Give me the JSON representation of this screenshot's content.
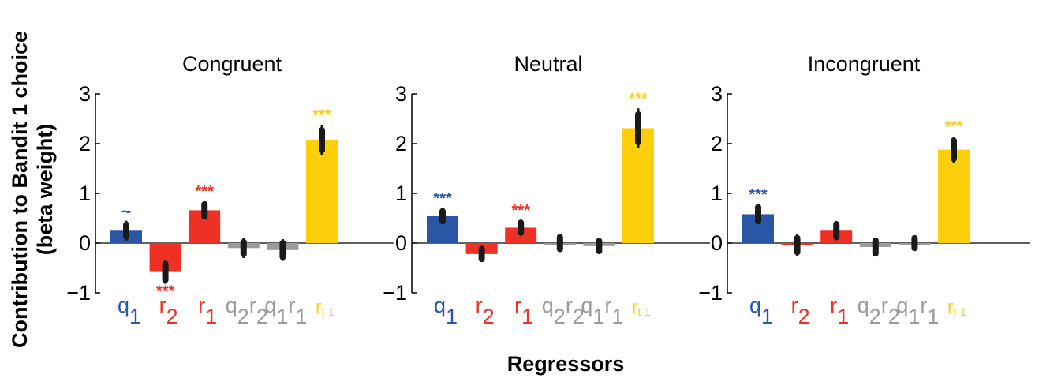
{
  "figure": {
    "ylabel_line1": "Contribution to Bandit 1 choice",
    "ylabel_line2": "(beta weight)",
    "xlabel": "Regressors"
  },
  "colors": {
    "blue": "#2b55a6",
    "red": "#ee3124",
    "gray": "#9b9b9b",
    "yellow": "#fccf0a",
    "errorbar": "#1a1a1a"
  },
  "chart_data": [
    {
      "type": "bar",
      "title": "Congruent",
      "ylim": [
        -1,
        3
      ],
      "yticks": [
        "−1",
        "0",
        "1",
        "2",
        "3"
      ],
      "categories": [
        "q1",
        "r2",
        "r1",
        "q2r2",
        "q1r1",
        "rt-1"
      ],
      "category_colors": [
        "blue",
        "red",
        "red",
        "gray",
        "gray",
        "yellow"
      ],
      "values": [
        0.25,
        -0.58,
        0.66,
        -0.1,
        -0.14,
        2.07
      ],
      "error_thick": [
        0.12,
        0.16,
        0.12,
        0.12,
        0.14,
        0.2
      ],
      "error_thin": [
        0.2,
        0.24,
        0.18,
        0.2,
        0.22,
        0.3
      ],
      "significance": [
        "~",
        "***",
        "***",
        "",
        "",
        "***"
      ]
    },
    {
      "type": "bar",
      "title": "Neutral",
      "ylim": [
        -1,
        3
      ],
      "yticks": [
        "−1",
        "0",
        "1",
        "2",
        "3"
      ],
      "categories": [
        "q1",
        "r2",
        "r1",
        "q2r2",
        "q1r1",
        "rt-1"
      ],
      "category_colors": [
        "blue",
        "red",
        "red",
        "gray",
        "gray",
        "yellow"
      ],
      "values": [
        0.54,
        -0.22,
        0.31,
        0.0,
        -0.06,
        2.31
      ],
      "error_thick": [
        0.1,
        0.1,
        0.1,
        0.12,
        0.1,
        0.28
      ],
      "error_thin": [
        0.16,
        0.16,
        0.15,
        0.17,
        0.15,
        0.4
      ],
      "significance": [
        "***",
        "",
        "***",
        "",
        "",
        "***"
      ]
    },
    {
      "type": "bar",
      "title": "Incongruent",
      "ylim": [
        -1,
        3
      ],
      "yticks": [
        "−1",
        "0",
        "1",
        "2",
        "3"
      ],
      "categories": [
        "q1",
        "r2",
        "r1",
        "q2r2",
        "q1r1",
        "rt-1"
      ],
      "category_colors": [
        "blue",
        "red",
        "red",
        "gray",
        "gray",
        "yellow"
      ],
      "values": [
        0.58,
        -0.04,
        0.25,
        -0.08,
        0.0,
        1.88
      ],
      "error_thick": [
        0.14,
        0.14,
        0.13,
        0.13,
        0.1,
        0.18
      ],
      "error_thin": [
        0.2,
        0.22,
        0.19,
        0.19,
        0.15,
        0.26
      ],
      "significance": [
        "***",
        "",
        "",
        "",
        "",
        "***"
      ]
    }
  ],
  "tick_labels": {
    "q1": [
      {
        "t": "q",
        "sub": false
      },
      {
        "t": "1",
        "sub": true
      }
    ],
    "r2": [
      {
        "t": "r",
        "sub": false
      },
      {
        "t": "2",
        "sub": true
      }
    ],
    "r1": [
      {
        "t": "r",
        "sub": false
      },
      {
        "t": "1",
        "sub": true
      }
    ],
    "q2r2": [
      {
        "t": "q",
        "sub": false
      },
      {
        "t": "2",
        "sub": true
      },
      {
        "t": "r",
        "sub": false
      },
      {
        "t": "2",
        "sub": true
      }
    ],
    "q1r1": [
      {
        "t": "q",
        "sub": false
      },
      {
        "t": "1",
        "sub": true
      },
      {
        "t": "r",
        "sub": false
      },
      {
        "t": "1",
        "sub": true
      }
    ],
    "rt-1": [
      {
        "t": "r",
        "sub": false
      },
      {
        "t": "t-1",
        "sub": true,
        "small": true
      }
    ]
  }
}
